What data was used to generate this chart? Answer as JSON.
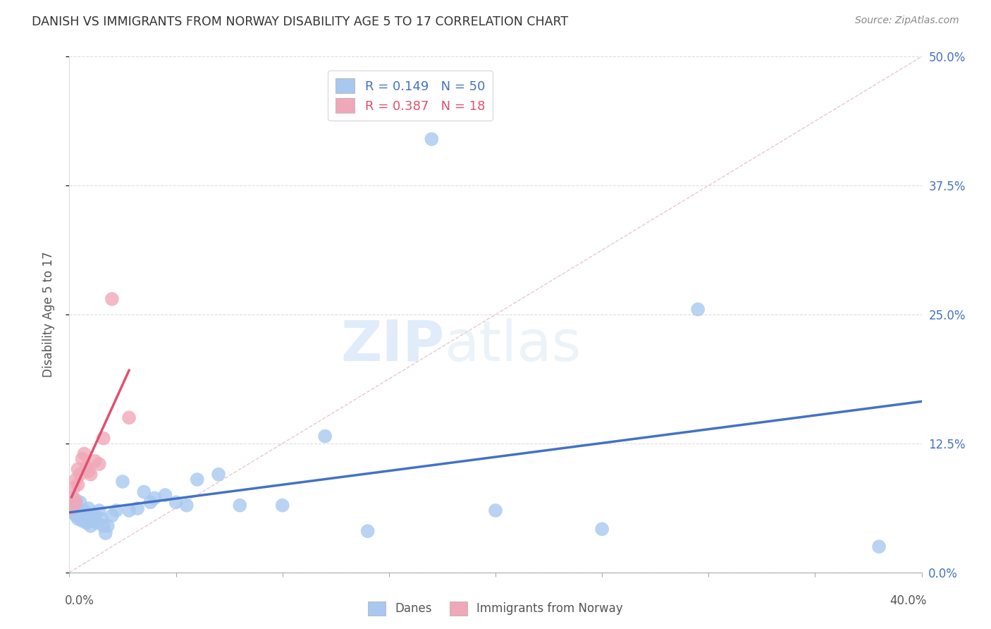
{
  "title": "DANISH VS IMMIGRANTS FROM NORWAY DISABILITY AGE 5 TO 17 CORRELATION CHART",
  "source": "Source: ZipAtlas.com",
  "ylabel": "Disability Age 5 to 17",
  "yticks": [
    "0.0%",
    "12.5%",
    "25.0%",
    "37.5%",
    "50.0%"
  ],
  "ytick_vals": [
    0.0,
    0.125,
    0.25,
    0.375,
    0.5
  ],
  "xlim": [
    0.0,
    0.4
  ],
  "ylim": [
    0.0,
    0.5
  ],
  "danes_R": 0.149,
  "danes_N": 50,
  "norway_R": 0.387,
  "norway_N": 18,
  "danes_color": "#a8c8f0",
  "danes_line_color": "#4472c4",
  "norway_color": "#f0a8b8",
  "norway_line_color": "#e05070",
  "watermark_zip": "ZIP",
  "watermark_atlas": "atlas",
  "background_color": "#ffffff",
  "danes_x": [
    0.001,
    0.002,
    0.002,
    0.003,
    0.003,
    0.003,
    0.004,
    0.004,
    0.005,
    0.005,
    0.006,
    0.006,
    0.007,
    0.007,
    0.008,
    0.008,
    0.009,
    0.009,
    0.01,
    0.01,
    0.011,
    0.012,
    0.013,
    0.014,
    0.015,
    0.016,
    0.017,
    0.018,
    0.02,
    0.022,
    0.025,
    0.028,
    0.032,
    0.035,
    0.038,
    0.04,
    0.045,
    0.05,
    0.055,
    0.06,
    0.07,
    0.08,
    0.1,
    0.12,
    0.14,
    0.17,
    0.2,
    0.25,
    0.295,
    0.38
  ],
  "danes_y": [
    0.06,
    0.058,
    0.065,
    0.055,
    0.06,
    0.07,
    0.052,
    0.062,
    0.055,
    0.068,
    0.05,
    0.058,
    0.052,
    0.06,
    0.048,
    0.055,
    0.05,
    0.062,
    0.055,
    0.045,
    0.05,
    0.055,
    0.048,
    0.06,
    0.052,
    0.045,
    0.038,
    0.045,
    0.055,
    0.06,
    0.088,
    0.06,
    0.062,
    0.078,
    0.068,
    0.072,
    0.075,
    0.068,
    0.065,
    0.09,
    0.095,
    0.065,
    0.065,
    0.132,
    0.04,
    0.42,
    0.06,
    0.042,
    0.255,
    0.025
  ],
  "norway_x": [
    0.001,
    0.002,
    0.002,
    0.003,
    0.003,
    0.004,
    0.004,
    0.005,
    0.006,
    0.007,
    0.008,
    0.009,
    0.01,
    0.012,
    0.014,
    0.016,
    0.02,
    0.028
  ],
  "norway_y": [
    0.062,
    0.072,
    0.082,
    0.068,
    0.09,
    0.085,
    0.1,
    0.095,
    0.11,
    0.115,
    0.102,
    0.098,
    0.095,
    0.108,
    0.105,
    0.13,
    0.265,
    0.15
  ]
}
